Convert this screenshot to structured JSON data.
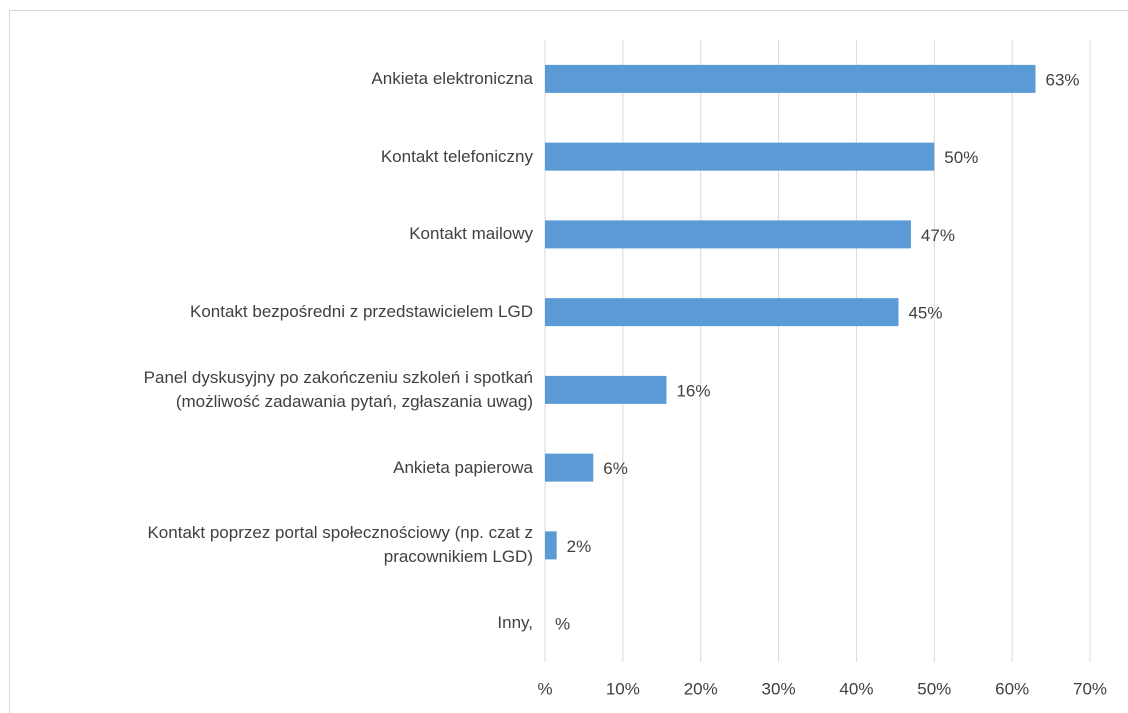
{
  "chart_data": {
    "type": "barh",
    "categories": [
      "Ankieta elektroniczna",
      "Kontakt telefoniczny",
      "Kontakt mailowy",
      "Kontakt bezpośredni z przedstawicielem LGD",
      "Panel dyskusyjny po zakończeniu szkoleń i spotkań\n(możliwość zadawania pytań, zgłaszania uwag)",
      "Ankieta papierowa",
      "Kontakt poprzez portal społecznościowy (np. czat z\npracownikiem LGD)",
      "Inny,"
    ],
    "values": [
      63,
      50,
      47,
      45.4,
      15.6,
      6.2,
      1.5,
      0
    ],
    "value_labels": [
      "63%",
      "50%",
      "47%",
      "45%",
      "16%",
      "6%",
      "2%",
      "%"
    ],
    "color": "#5b9bd5",
    "xlim": [
      0,
      70
    ],
    "xticks": [
      {
        "value": 0,
        "label": "%"
      },
      {
        "value": 10,
        "label": "10%"
      },
      {
        "value": 20,
        "label": "20%"
      },
      {
        "value": 30,
        "label": "30%"
      },
      {
        "value": 40,
        "label": "40%"
      },
      {
        "value": 50,
        "label": "50%"
      },
      {
        "value": 60,
        "label": "60%"
      },
      {
        "value": 70,
        "label": "70%"
      }
    ],
    "grid": true
  }
}
